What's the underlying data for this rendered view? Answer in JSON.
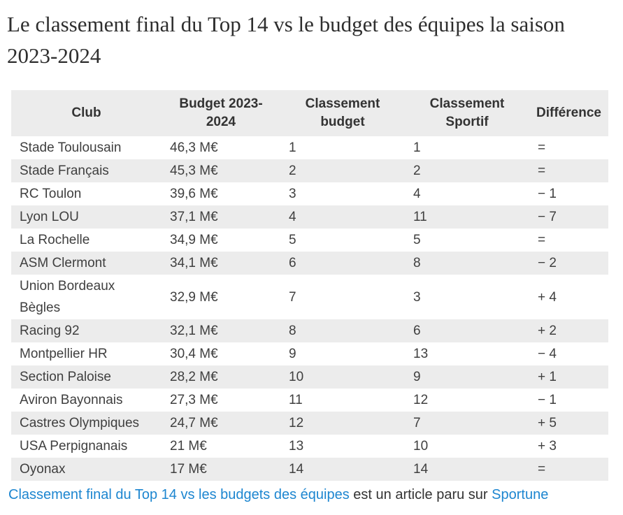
{
  "page": {
    "title": "Le classement final du Top 14 vs le budget des équipes la saison 2023-2024"
  },
  "table": {
    "columns": [
      "Club",
      "Budget 2023-2024",
      "Classement budget",
      "Classement Sportif",
      "Différence"
    ],
    "rows": [
      {
        "club": "Stade Toulousain",
        "budget": "46,3 M€",
        "classement_budget": "1",
        "classement_sportif": "1",
        "difference": "="
      },
      {
        "club": "Stade Français",
        "budget": "45,3 M€",
        "classement_budget": "2",
        "classement_sportif": "2",
        "difference": "="
      },
      {
        "club": "RC Toulon",
        "budget": "39,6 M€",
        "classement_budget": "3",
        "classement_sportif": "4",
        "difference": "− 1"
      },
      {
        "club": "Lyon LOU",
        "budget": "37,1 M€",
        "classement_budget": "4",
        "classement_sportif": "11",
        "difference": "− 7"
      },
      {
        "club": "La Rochelle",
        "budget": "34,9 M€",
        "classement_budget": "5",
        "classement_sportif": "5",
        "difference": "="
      },
      {
        "club": "ASM Clermont",
        "budget": "34,1 M€",
        "classement_budget": "6",
        "classement_sportif": "8",
        "difference": "− 2"
      },
      {
        "club": "Union Bordeaux Bègles",
        "budget": "32,9 M€",
        "classement_budget": "7",
        "classement_sportif": "3",
        "difference": "+ 4"
      },
      {
        "club": "Racing 92",
        "budget": "32,1 M€",
        "classement_budget": "8",
        "classement_sportif": "6",
        "difference": "+ 2"
      },
      {
        "club": "Montpellier HR",
        "budget": "30,4 M€",
        "classement_budget": "9",
        "classement_sportif": "13",
        "difference": "− 4"
      },
      {
        "club": "Section Paloise",
        "budget": "28,2 M€",
        "classement_budget": "10",
        "classement_sportif": "9",
        "difference": "+ 1"
      },
      {
        "club": "Aviron Bayonnais",
        "budget": "27,3 M€",
        "classement_budget": "11",
        "classement_sportif": "12",
        "difference": "− 1"
      },
      {
        "club": "Castres Olympiques",
        "budget": "24,7 M€",
        "classement_budget": "12",
        "classement_sportif": "7",
        "difference": "+ 5"
      },
      {
        "club": "USA Perpignanais",
        "budget": "21 M€",
        "classement_budget": "13",
        "classement_sportif": "10",
        "difference": "+ 3"
      },
      {
        "club": "Oyonax",
        "budget": "17 M€",
        "classement_budget": "14",
        "classement_sportif": "14",
        "difference": "="
      }
    ]
  },
  "footer": {
    "link_article": "Classement final du Top 14 vs les budgets des équipes",
    "middle_text": " est un article paru sur ",
    "link_source": "Sportune"
  },
  "colors": {
    "link": "#1d86d0",
    "row_alt_background": "#ececec",
    "header_background": "#ececec",
    "body_text": "#3f3f3f",
    "title_text": "#2e2e2e"
  }
}
